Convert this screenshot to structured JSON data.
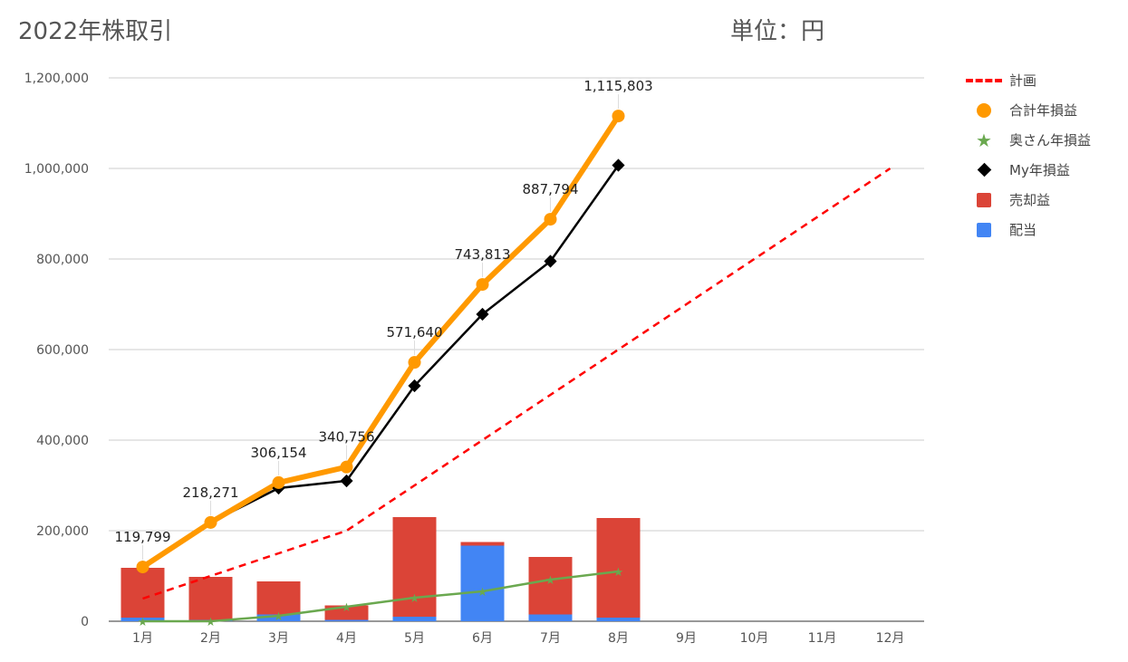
{
  "title": "2022年株取引",
  "unit": "単位：円",
  "colors": {
    "plan": "#ff0000",
    "total": "#ff9900",
    "wife": "#6aa84f",
    "my": "#000000",
    "sale": "#db4437",
    "dividend": "#4285f4",
    "grid": "#cccccc",
    "axis": "#333333"
  },
  "legend": [
    {
      "label": "計画",
      "symbol": "dashed-line"
    },
    {
      "label": "合計年損益",
      "symbol": "circle"
    },
    {
      "label": "奥さん年損益",
      "symbol": "star"
    },
    {
      "label": "My年損益",
      "symbol": "diamond"
    },
    {
      "label": "売却益",
      "symbol": "square"
    },
    {
      "label": "配当",
      "symbol": "square"
    }
  ],
  "chart_data": {
    "type": "bar",
    "categories": [
      "1月",
      "2月",
      "3月",
      "4月",
      "5月",
      "6月",
      "7月",
      "8月",
      "9月",
      "10月",
      "11月",
      "12月"
    ],
    "y_ticks": [
      "0",
      "200,000",
      "400,000",
      "600,000",
      "800,000",
      "1,000,000",
      "1,200,000"
    ],
    "ylim": [
      0,
      1200000
    ],
    "grid": true,
    "legend_position": "right",
    "stacked_bars": [
      {
        "name": "配当",
        "values": [
          8000,
          3000,
          15000,
          3000,
          10000,
          167000,
          15000,
          8000,
          0,
          0,
          0,
          0
        ]
      },
      {
        "name": "売却益",
        "values": [
          110000,
          95000,
          73000,
          32000,
          220000,
          8000,
          127000,
          220000,
          0,
          0,
          0,
          0
        ]
      }
    ],
    "lines": [
      {
        "name": "計画",
        "style": "dashed",
        "values": [
          50000,
          100000,
          150000,
          200000,
          300000,
          400000,
          500000,
          600000,
          700000,
          800000,
          900000,
          1000000
        ]
      },
      {
        "name": "合計年損益",
        "marker": "circle",
        "values": [
          119799,
          218271,
          306154,
          340756,
          571640,
          743813,
          887794,
          1115803,
          null,
          null,
          null,
          null
        ]
      },
      {
        "name": "奥さん年損益",
        "marker": "star",
        "values": [
          0,
          0,
          12000,
          32000,
          52000,
          66000,
          92000,
          110000,
          null,
          null,
          null,
          null
        ]
      },
      {
        "name": "My年損益",
        "marker": "diamond",
        "values": [
          119799,
          218271,
          294000,
          310000,
          520000,
          678000,
          795000,
          1007000,
          null,
          null,
          null,
          null
        ]
      }
    ],
    "data_labels": [
      "119,799",
      "218,271",
      "306,154",
      "340,756",
      "571,640",
      "743,813",
      "887,794",
      "1,115,803"
    ]
  }
}
